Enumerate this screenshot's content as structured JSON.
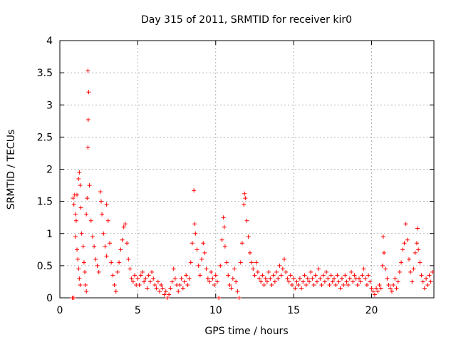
{
  "chart_data": {
    "type": "scatter",
    "title": "Day 315 of 2011, SRMTID for receiver kir0",
    "xlabel": "GPS time / hours",
    "ylabel": "SRMTID / TECUs",
    "xlim": [
      0,
      24
    ],
    "ylim": [
      0,
      4
    ],
    "xticks": [
      0,
      5,
      10,
      15,
      20
    ],
    "yticks": [
      0,
      0.5,
      1,
      1.5,
      2,
      2.5,
      3,
      3.5,
      4
    ],
    "xtick_labels": [
      "0",
      "5",
      "10",
      "15",
      "20"
    ],
    "ytick_labels": [
      "0",
      "0.5",
      "1",
      "1.5",
      "2",
      "2.5",
      "3",
      "3.5",
      "4"
    ],
    "grid": true,
    "marker": "+",
    "color": "#ff0000",
    "series": [
      {
        "name": "kir0",
        "points": [
          [
            0.8,
            0.0
          ],
          [
            0.9,
            0.0
          ],
          [
            0.85,
            1.55
          ],
          [
            0.9,
            1.45
          ],
          [
            0.95,
            1.6
          ],
          [
            1.0,
            1.3
          ],
          [
            1.05,
            1.2
          ],
          [
            1.0,
            0.95
          ],
          [
            1.1,
            0.75
          ],
          [
            1.15,
            0.6
          ],
          [
            1.2,
            0.45
          ],
          [
            1.25,
            0.3
          ],
          [
            1.3,
            0.2
          ],
          [
            1.1,
            1.6
          ],
          [
            1.2,
            1.85
          ],
          [
            1.25,
            1.95
          ],
          [
            1.3,
            1.75
          ],
          [
            1.35,
            1.4
          ],
          [
            1.4,
            1.0
          ],
          [
            1.5,
            0.8
          ],
          [
            1.55,
            0.55
          ],
          [
            1.6,
            0.4
          ],
          [
            1.65,
            0.2
          ],
          [
            1.7,
            0.1
          ],
          [
            1.8,
            3.53
          ],
          [
            1.85,
            3.2
          ],
          [
            1.82,
            2.77
          ],
          [
            1.8,
            2.34
          ],
          [
            1.9,
            1.75
          ],
          [
            1.75,
            1.55
          ],
          [
            1.7,
            1.3
          ],
          [
            2.0,
            1.2
          ],
          [
            2.1,
            0.95
          ],
          [
            2.2,
            0.8
          ],
          [
            2.3,
            0.6
          ],
          [
            2.4,
            0.5
          ],
          [
            2.5,
            0.4
          ],
          [
            2.6,
            1.65
          ],
          [
            2.65,
            1.5
          ],
          [
            2.7,
            1.3
          ],
          [
            2.8,
            1.0
          ],
          [
            2.9,
            0.8
          ],
          [
            3.0,
            0.65
          ],
          [
            3.0,
            1.45
          ],
          [
            3.1,
            1.2
          ],
          [
            3.2,
            0.85
          ],
          [
            3.3,
            0.55
          ],
          [
            3.4,
            0.35
          ],
          [
            3.5,
            0.2
          ],
          [
            3.6,
            0.1
          ],
          [
            3.7,
            0.4
          ],
          [
            3.8,
            0.55
          ],
          [
            3.9,
            0.75
          ],
          [
            4.0,
            0.9
          ],
          [
            4.1,
            1.1
          ],
          [
            4.2,
            1.15
          ],
          [
            4.3,
            0.85
          ],
          [
            4.4,
            0.6
          ],
          [
            4.5,
            0.45
          ],
          [
            4.6,
            0.3
          ],
          [
            4.7,
            0.25
          ],
          [
            4.8,
            0.35
          ],
          [
            4.9,
            0.2
          ],
          [
            5.0,
            0.3
          ],
          [
            5.1,
            0.2
          ],
          [
            5.2,
            0.35
          ],
          [
            5.3,
            0.4
          ],
          [
            5.4,
            0.25
          ],
          [
            5.5,
            0.3
          ],
          [
            5.6,
            0.15
          ],
          [
            5.7,
            0.35
          ],
          [
            5.8,
            0.25
          ],
          [
            5.9,
            0.4
          ],
          [
            6.0,
            0.3
          ],
          [
            6.1,
            0.2
          ],
          [
            6.2,
            0.15
          ],
          [
            6.3,
            0.25
          ],
          [
            6.4,
            0.1
          ],
          [
            6.5,
            0.2
          ],
          [
            6.6,
            0.15
          ],
          [
            6.7,
            0.05
          ],
          [
            6.8,
            0.1
          ],
          [
            6.9,
            0.0
          ],
          [
            7.0,
            0.05
          ],
          [
            7.1,
            0.15
          ],
          [
            7.2,
            0.25
          ],
          [
            7.3,
            0.45
          ],
          [
            7.4,
            0.3
          ],
          [
            7.5,
            0.2
          ],
          [
            7.6,
            0.1
          ],
          [
            7.7,
            0.2
          ],
          [
            7.8,
            0.3
          ],
          [
            7.9,
            0.15
          ],
          [
            8.0,
            0.25
          ],
          [
            8.1,
            0.35
          ],
          [
            8.2,
            0.2
          ],
          [
            8.3,
            0.3
          ],
          [
            8.4,
            0.55
          ],
          [
            8.5,
            0.85
          ],
          [
            8.6,
            1.67
          ],
          [
            8.65,
            1.15
          ],
          [
            8.7,
            1.0
          ],
          [
            8.8,
            0.75
          ],
          [
            8.9,
            0.5
          ],
          [
            9.0,
            0.35
          ],
          [
            9.1,
            0.6
          ],
          [
            9.2,
            0.85
          ],
          [
            9.3,
            0.7
          ],
          [
            9.4,
            0.45
          ],
          [
            9.5,
            0.3
          ],
          [
            9.6,
            0.25
          ],
          [
            9.7,
            0.4
          ],
          [
            9.8,
            0.3
          ],
          [
            9.9,
            0.2
          ],
          [
            10.0,
            0.35
          ],
          [
            10.1,
            0.25
          ],
          [
            10.2,
            0.0
          ],
          [
            10.3,
            0.5
          ],
          [
            10.4,
            0.9
          ],
          [
            10.5,
            1.25
          ],
          [
            10.55,
            1.1
          ],
          [
            10.6,
            0.8
          ],
          [
            10.7,
            0.55
          ],
          [
            10.8,
            0.35
          ],
          [
            10.9,
            0.2
          ],
          [
            11.0,
            0.15
          ],
          [
            11.1,
            0.3
          ],
          [
            11.2,
            0.45
          ],
          [
            11.3,
            0.25
          ],
          [
            11.4,
            0.1
          ],
          [
            11.5,
            0.0
          ],
          [
            11.6,
            0.55
          ],
          [
            11.7,
            0.85
          ],
          [
            11.8,
            1.45
          ],
          [
            11.85,
            1.62
          ],
          [
            11.9,
            1.55
          ],
          [
            12.0,
            1.2
          ],
          [
            12.1,
            0.95
          ],
          [
            12.2,
            0.7
          ],
          [
            12.3,
            0.55
          ],
          [
            12.4,
            0.45
          ],
          [
            12.5,
            0.35
          ],
          [
            12.6,
            0.55
          ],
          [
            12.7,
            0.4
          ],
          [
            12.8,
            0.3
          ],
          [
            12.9,
            0.25
          ],
          [
            13.0,
            0.35
          ],
          [
            13.1,
            0.2
          ],
          [
            13.2,
            0.3
          ],
          [
            13.3,
            0.25
          ],
          [
            13.4,
            0.4
          ],
          [
            13.5,
            0.3
          ],
          [
            13.6,
            0.2
          ],
          [
            13.7,
            0.35
          ],
          [
            13.8,
            0.25
          ],
          [
            13.9,
            0.4
          ],
          [
            14.0,
            0.3
          ],
          [
            14.1,
            0.5
          ],
          [
            14.2,
            0.35
          ],
          [
            14.3,
            0.45
          ],
          [
            14.4,
            0.6
          ],
          [
            14.5,
            0.4
          ],
          [
            14.6,
            0.3
          ],
          [
            14.7,
            0.25
          ],
          [
            14.8,
            0.35
          ],
          [
            14.9,
            0.2
          ],
          [
            15.0,
            0.3
          ],
          [
            15.1,
            0.15
          ],
          [
            15.2,
            0.25
          ],
          [
            15.3,
            0.2
          ],
          [
            15.4,
            0.3
          ],
          [
            15.5,
            0.15
          ],
          [
            15.6,
            0.25
          ],
          [
            15.7,
            0.35
          ],
          [
            15.8,
            0.2
          ],
          [
            15.9,
            0.3
          ],
          [
            16.0,
            0.25
          ],
          [
            16.1,
            0.4
          ],
          [
            16.2,
            0.3
          ],
          [
            16.3,
            0.2
          ],
          [
            16.4,
            0.35
          ],
          [
            16.5,
            0.25
          ],
          [
            16.6,
            0.45
          ],
          [
            16.7,
            0.3
          ],
          [
            16.8,
            0.2
          ],
          [
            16.9,
            0.35
          ],
          [
            17.0,
            0.25
          ],
          [
            17.1,
            0.4
          ],
          [
            17.2,
            0.3
          ],
          [
            17.3,
            0.2
          ],
          [
            17.4,
            0.35
          ],
          [
            17.5,
            0.25
          ],
          [
            17.6,
            0.3
          ],
          [
            17.7,
            0.2
          ],
          [
            17.8,
            0.35
          ],
          [
            17.9,
            0.25
          ],
          [
            18.0,
            0.15
          ],
          [
            18.1,
            0.3
          ],
          [
            18.2,
            0.2
          ],
          [
            18.3,
            0.35
          ],
          [
            18.4,
            0.25
          ],
          [
            18.5,
            0.2
          ],
          [
            18.6,
            0.3
          ],
          [
            18.7,
            0.4
          ],
          [
            18.8,
            0.25
          ],
          [
            18.9,
            0.35
          ],
          [
            19.0,
            0.3
          ],
          [
            19.1,
            0.2
          ],
          [
            19.2,
            0.3
          ],
          [
            19.3,
            0.25
          ],
          [
            19.4,
            0.35
          ],
          [
            19.5,
            0.45
          ],
          [
            19.6,
            0.3
          ],
          [
            19.7,
            0.2
          ],
          [
            19.8,
            0.35
          ],
          [
            19.9,
            0.25
          ],
          [
            20.0,
            0.15
          ],
          [
            20.1,
            0.1
          ],
          [
            20.2,
            0.05
          ],
          [
            20.3,
            0.15
          ],
          [
            20.4,
            0.1
          ],
          [
            20.5,
            0.2
          ],
          [
            20.6,
            0.15
          ],
          [
            20.7,
            0.5
          ],
          [
            20.75,
            0.95
          ],
          [
            20.8,
            0.7
          ],
          [
            20.9,
            0.45
          ],
          [
            21.0,
            0.3
          ],
          [
            21.1,
            0.2
          ],
          [
            21.2,
            0.15
          ],
          [
            21.3,
            0.1
          ],
          [
            21.4,
            0.2
          ],
          [
            21.5,
            0.3
          ],
          [
            21.6,
            0.15
          ],
          [
            21.7,
            0.25
          ],
          [
            21.8,
            0.4
          ],
          [
            21.9,
            0.55
          ],
          [
            22.0,
            0.75
          ],
          [
            22.1,
            0.85
          ],
          [
            22.2,
            1.15
          ],
          [
            22.3,
            0.9
          ],
          [
            22.4,
            0.6
          ],
          [
            22.5,
            0.4
          ],
          [
            22.6,
            0.25
          ],
          [
            22.7,
            0.45
          ],
          [
            22.8,
            0.7
          ],
          [
            22.9,
            0.85
          ],
          [
            22.95,
            1.08
          ],
          [
            23.0,
            0.75
          ],
          [
            23.1,
            0.55
          ],
          [
            23.2,
            0.35
          ],
          [
            23.3,
            0.25
          ],
          [
            23.4,
            0.15
          ],
          [
            23.5,
            0.3
          ],
          [
            23.6,
            0.2
          ],
          [
            23.7,
            0.35
          ],
          [
            23.8,
            0.25
          ],
          [
            23.9,
            0.4
          ]
        ]
      }
    ]
  }
}
